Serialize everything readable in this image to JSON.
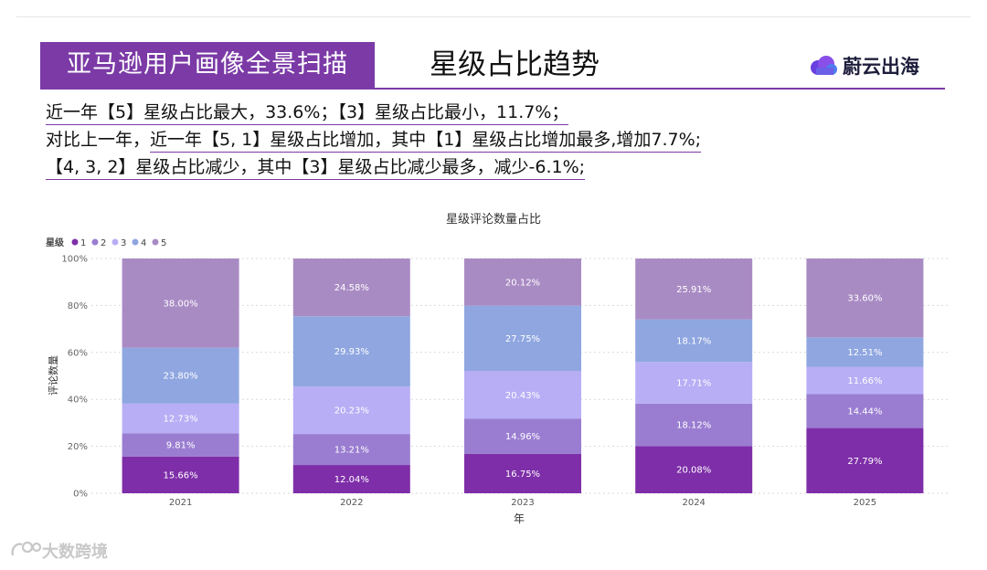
{
  "header": {
    "banner_title": "亚马逊用户画像全景扫描",
    "section_title": "星级占比趋势",
    "brand_name": "蔚云出海"
  },
  "summary": {
    "line1": "近一年【5】星级占比最大，33.6%；【3】星级占比最小，11.7%；",
    "line2_plain": "对比上一年，",
    "line2_underlined": "近一年【5, 1】星级占比增加，其中【1】星级占比增加最多,增加7.7%;",
    "line3": "【4, 3, 2】星级占比减少，其中【3】星级占比减少最多，减少-6.1%;"
  },
  "watermark": "大数跨境",
  "chart_data": {
    "type": "bar",
    "stacked": "percent",
    "title": "星级评论数量占比",
    "xlabel": "年",
    "ylabel": "评论数量",
    "legend_title": "星级",
    "legend_position": "top-left",
    "categories": [
      "2021",
      "2022",
      "2023",
      "2024",
      "2025"
    ],
    "y_ticks": [
      "0%",
      "20%",
      "40%",
      "60%",
      "80%",
      "100%"
    ],
    "ylim": [
      0,
      100
    ],
    "grid": true,
    "series": [
      {
        "name": "1",
        "color": "#7e2ea8",
        "values": [
          15.66,
          12.04,
          16.75,
          20.08,
          27.79
        ],
        "labels": [
          "15.66%",
          "12.04%",
          "16.75%",
          "20.08%",
          "27.79%"
        ]
      },
      {
        "name": "2",
        "color": "#9a7dd1",
        "values": [
          9.81,
          13.21,
          14.96,
          18.12,
          14.44
        ],
        "labels": [
          "9.81%",
          "13.21%",
          "14.96%",
          "18.12%",
          "14.44%"
        ]
      },
      {
        "name": "3",
        "color": "#b8aef5",
        "values": [
          12.73,
          20.23,
          20.43,
          17.71,
          11.66
        ],
        "labels": [
          "12.73%",
          "20.23%",
          "20.43%",
          "17.71%",
          "11.66%"
        ]
      },
      {
        "name": "4",
        "color": "#8fa6e0",
        "values": [
          23.8,
          29.93,
          27.75,
          18.17,
          12.51
        ],
        "labels": [
          "23.80%",
          "29.93%",
          "27.75%",
          "18.17%",
          "12.51%"
        ]
      },
      {
        "name": "5",
        "color": "#a98bc4",
        "values": [
          38.0,
          24.58,
          20.12,
          25.91,
          33.6
        ],
        "labels": [
          "38.00%",
          "24.58%",
          "20.12%",
          "25.91%",
          "33.60%"
        ]
      }
    ]
  }
}
